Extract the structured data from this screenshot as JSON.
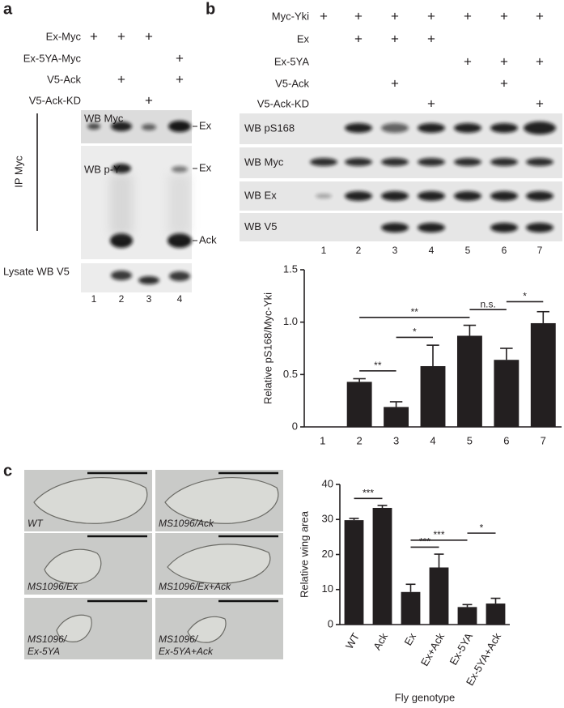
{
  "panel_a": {
    "label": "a",
    "rows": [
      {
        "name": "Ex-Myc",
        "lanes": [
          "+",
          "+",
          "+",
          null
        ]
      },
      {
        "name": "Ex-5YA-Myc",
        "lanes": [
          null,
          null,
          null,
          "+"
        ]
      },
      {
        "name": "V5-Ack",
        "lanes": [
          null,
          "+",
          null,
          "+"
        ]
      },
      {
        "name": "V5-Ack-KD",
        "lanes": [
          null,
          null,
          "+",
          null
        ]
      }
    ],
    "blots": [
      {
        "name": "WB Myc",
        "markers": [
          "Ex"
        ]
      },
      {
        "name": "WB p-Y",
        "markers": [
          "Ex",
          "Ack"
        ]
      },
      {
        "name": "Lysate WB V5"
      }
    ],
    "ip_label": "IP Myc",
    "lanes": [
      "1",
      "2",
      "3",
      "4"
    ]
  },
  "panel_b": {
    "label": "b",
    "rows": [
      {
        "name": "Myc-Yki",
        "lanes": [
          "+",
          "+",
          "+",
          "+",
          "+",
          "+",
          "+"
        ]
      },
      {
        "name": "Ex",
        "lanes": [
          null,
          "+",
          "+",
          "+",
          null,
          null,
          null
        ]
      },
      {
        "name": "Ex-5YA",
        "lanes": [
          null,
          null,
          null,
          null,
          "+",
          "+",
          "+"
        ]
      },
      {
        "name": "V5-Ack",
        "lanes": [
          null,
          null,
          "+",
          null,
          null,
          "+",
          null
        ]
      },
      {
        "name": "V5-Ack-KD",
        "lanes": [
          null,
          null,
          null,
          "+",
          null,
          null,
          "+"
        ]
      }
    ],
    "blots": [
      {
        "name": "WB pS168"
      },
      {
        "name": "WB Myc"
      },
      {
        "name": "WB Ex"
      },
      {
        "name": "WB V5"
      }
    ],
    "lanes": [
      "1",
      "2",
      "3",
      "4",
      "5",
      "6",
      "7"
    ],
    "chart": {
      "type": "bar",
      "ylabel": "Relative pS168/Myc-Yki",
      "categories": [
        "1",
        "2",
        "3",
        "4",
        "5",
        "6",
        "7"
      ],
      "values": [
        null,
        0.43,
        0.19,
        0.58,
        0.87,
        0.64,
        0.99
      ],
      "errors": [
        null,
        0.03,
        0.05,
        0.2,
        0.1,
        0.11,
        0.11
      ],
      "color": "#231f20",
      "ylim": [
        0,
        1.5
      ],
      "yticks": [
        0,
        0.5,
        {
          "value": 1,
          "label": "1.0"
        },
        1.5
      ],
      "annotations": [
        {
          "text": "**",
          "from": "2",
          "to": "3"
        },
        {
          "text": "*",
          "from": "3",
          "to": "4"
        },
        {
          "text": "**",
          "from": "2",
          "to": "5"
        },
        {
          "text": "n.s.",
          "from": "5",
          "to": "6"
        },
        {
          "text": "*",
          "from": "6",
          "to": "7"
        }
      ]
    }
  },
  "panel_c": {
    "label": "c",
    "images": [
      {
        "label": [
          "WT"
        ]
      },
      {
        "label": [
          "MS1096/Ack"
        ]
      },
      {
        "label": [
          "MS1096/Ex"
        ]
      },
      {
        "label": [
          "MS1096/Ex+Ack"
        ]
      },
      {
        "label": [
          "MS1096/",
          "Ex-5YA"
        ]
      },
      {
        "label": [
          "MS1096/",
          "Ex-5YA+Ack"
        ]
      }
    ],
    "chart": {
      "type": "bar",
      "ylabel": "Relative wing area",
      "xlabel": "Fly genotype",
      "categories": [
        "WT",
        "Ack",
        "Ex",
        "Ex+Ack",
        "Ex-5YA",
        "Ex-5YA+Ack"
      ],
      "values": [
        29.8,
        33.3,
        9.3,
        16.3,
        5,
        6
      ],
      "errors": [
        0.5,
        0.7,
        2.2,
        3.8,
        0.7,
        1.5
      ],
      "color": "#231f20",
      "ylim": [
        0,
        40
      ],
      "yticks": [
        0,
        10,
        20,
        30,
        40
      ],
      "annotations": [
        {
          "text": "***",
          "from": "WT",
          "to": "Ack"
        },
        {
          "text": "***",
          "from": "Ex",
          "to": "Ex+Ack"
        },
        {
          "text": "***",
          "from": "Ex",
          "to": "Ex-5YA"
        },
        {
          "text": "*",
          "from": "Ex-5YA",
          "to": "Ex-5YA+Ack"
        }
      ]
    }
  }
}
